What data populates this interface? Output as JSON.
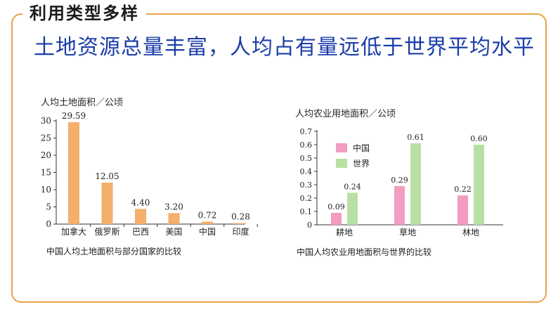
{
  "header": {
    "section_title": "利用类型多样",
    "main_title": "土地资源总量丰富，人均占有量远低于世界平均水平"
  },
  "colors": {
    "frame": "#E8A24A",
    "title": "#1B3DA8",
    "bar_orange": "#F4AF6B",
    "bar_pink": "#F29CC0",
    "bar_green": "#B9E0A4"
  },
  "chart_data": [
    {
      "type": "bar",
      "ylabel": "人均土地面积／公顷",
      "caption": "中国人均土地面积与部分国家的比较",
      "categories": [
        "加拿大",
        "俄罗斯",
        "巴西",
        "美国",
        "中国",
        "印度"
      ],
      "values": [
        29.59,
        12.05,
        4.4,
        3.2,
        0.72,
        0.28
      ],
      "value_labels": [
        "29.59",
        "12.05",
        "4.40",
        "3.20",
        "0.72",
        "0.28"
      ],
      "ylim": [
        0,
        30
      ],
      "yticks": [
        "0",
        "5",
        "10",
        "15",
        "20",
        "25",
        "30"
      ],
      "grid": false
    },
    {
      "type": "bar",
      "ylabel": "人均农业用地面积／公顷",
      "caption": "中国人均农业用地面积与世界的比较",
      "categories": [
        "耕地",
        "草地",
        "林地"
      ],
      "series": [
        {
          "name": "中国",
          "values": [
            0.09,
            0.29,
            0.22
          ],
          "labels": [
            "0.09",
            "0.29",
            "0.22"
          ]
        },
        {
          "name": "世界",
          "values": [
            0.24,
            0.61,
            0.6
          ],
          "labels": [
            "0.24",
            "0.61",
            "0.60"
          ]
        }
      ],
      "ylim": [
        0,
        0.7
      ],
      "yticks": [
        "0",
        "0.1",
        "0.2",
        "0.3",
        "0.4",
        "0.5",
        "0.6",
        "0.7"
      ],
      "legend": "top-left",
      "grid": false
    }
  ]
}
